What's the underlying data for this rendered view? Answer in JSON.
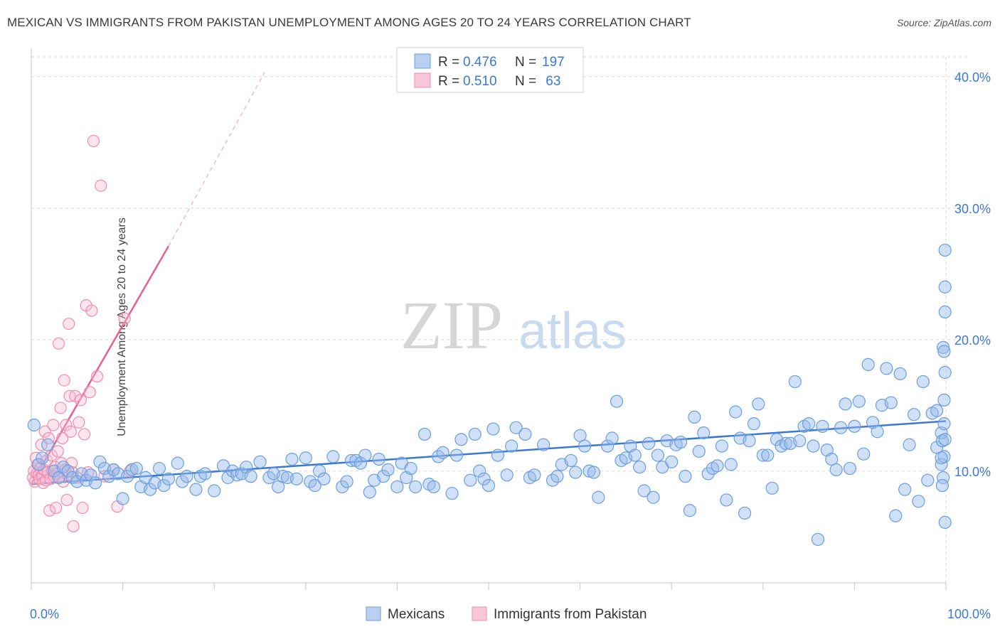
{
  "title": "MEXICAN VS IMMIGRANTS FROM PAKISTAN UNEMPLOYMENT AMONG AGES 20 TO 24 YEARS CORRELATION CHART",
  "source": "Source: ZipAtlas.com",
  "watermark": {
    "zip": "ZIP",
    "atlas": "atlas"
  },
  "colors": {
    "blue": "#6a9fe0",
    "blue_line": "#3a78d4",
    "pink": "#f08cae",
    "pink_line": "#e8608c",
    "tick_text": "#3a78d4",
    "grid": "#d8d8d8"
  },
  "legend_top": [
    {
      "r_label": "R = ",
      "r_value": "0.476",
      "n_label": "N = ",
      "n_value": "197"
    },
    {
      "r_label": "R = ",
      "r_value": "0.510",
      "n_label": "N = ",
      "n_value": " 63"
    }
  ],
  "chart_data": {
    "type": "scatter",
    "title": "MEXICAN VS IMMIGRANTS FROM PAKISTAN UNEMPLOYMENT AMONG AGES 20 TO 24 YEARS CORRELATION CHART",
    "xlabel": "",
    "ylabel": "Unemployment Among Ages 20 to 24 years",
    "xlim": [
      0,
      100
    ],
    "ylim": [
      1.5,
      41.5
    ],
    "x_tick_labels": [
      "0.0%",
      "100.0%"
    ],
    "y_ticks": [
      10,
      20,
      30,
      40
    ],
    "y_tick_labels": [
      "10.0%",
      "20.0%",
      "30.0%",
      "40.0%"
    ],
    "grid": true,
    "legend_position": "bottom-center",
    "series": [
      {
        "name": "Mexicans",
        "r": 0.476,
        "n": 197,
        "trend": {
          "x0": 0,
          "y0": 9.0,
          "x1": 100,
          "y1": 13.8
        },
        "points": [
          [
            0.3,
            13.5
          ],
          [
            0.8,
            10.5
          ],
          [
            1.2,
            11
          ],
          [
            1.8,
            12
          ],
          [
            2.5,
            10
          ],
          [
            3,
            9.5
          ],
          [
            3.5,
            10.3
          ],
          [
            4,
            10
          ],
          [
            4.5,
            9.5
          ],
          [
            5,
            9.2
          ],
          [
            5.5,
            9.8
          ],
          [
            6,
            9.3
          ],
          [
            6.5,
            9.7
          ],
          [
            7,
            9.1
          ],
          [
            7.5,
            10.7
          ],
          [
            8,
            10.2
          ],
          [
            8.5,
            9.6
          ],
          [
            9,
            10.1
          ],
          [
            9.5,
            9.8
          ],
          [
            10,
            7.9
          ],
          [
            10.5,
            9.6
          ],
          [
            11,
            10.1
          ],
          [
            11.5,
            10.2
          ],
          [
            12,
            8.8
          ],
          [
            12.5,
            9.5
          ],
          [
            13,
            8.6
          ],
          [
            13.5,
            9.1
          ],
          [
            14,
            10.2
          ],
          [
            14.5,
            8.9
          ],
          [
            15,
            9.4
          ],
          [
            16,
            10.6
          ],
          [
            16.5,
            9.2
          ],
          [
            17,
            9.6
          ],
          [
            18,
            8.6
          ],
          [
            18.5,
            9.6
          ],
          [
            19,
            9.8
          ],
          [
            20,
            8.5
          ],
          [
            21,
            10.4
          ],
          [
            21.5,
            9.5
          ],
          [
            22,
            10
          ],
          [
            22.5,
            9.7
          ],
          [
            23,
            9.8
          ],
          [
            23.5,
            10.3
          ],
          [
            24,
            9.6
          ],
          [
            25,
            10.7
          ],
          [
            26,
            9.5
          ],
          [
            26.5,
            9.8
          ],
          [
            27,
            8.8
          ],
          [
            27.5,
            9.6
          ],
          [
            28,
            9.5
          ],
          [
            28.5,
            10.9
          ],
          [
            29,
            9.4
          ],
          [
            30,
            11
          ],
          [
            30.5,
            9.2
          ],
          [
            31,
            8.9
          ],
          [
            31.5,
            10
          ],
          [
            32,
            9.4
          ],
          [
            33,
            11.1
          ],
          [
            34,
            8.8
          ],
          [
            34.5,
            9.2
          ],
          [
            35,
            10.8
          ],
          [
            35.5,
            10.8
          ],
          [
            36,
            10.6
          ],
          [
            36.5,
            11.2
          ],
          [
            37,
            8.4
          ],
          [
            37.5,
            9.3
          ],
          [
            38,
            10.9
          ],
          [
            38.5,
            9.6
          ],
          [
            39,
            10.1
          ],
          [
            40,
            8.8
          ],
          [
            40.5,
            10.6
          ],
          [
            41,
            9.5
          ],
          [
            41.5,
            10.2
          ],
          [
            42,
            8.8
          ],
          [
            43,
            12.8
          ],
          [
            43.5,
            9.0
          ],
          [
            44,
            8.8
          ],
          [
            44.5,
            11.1
          ],
          [
            45,
            11.4
          ],
          [
            46,
            8.3
          ],
          [
            46.5,
            11.2
          ],
          [
            47,
            12.4
          ],
          [
            48,
            9.3
          ],
          [
            48.5,
            12.8
          ],
          [
            49,
            10
          ],
          [
            49.5,
            9.4
          ],
          [
            50,
            8.9
          ],
          [
            50.5,
            13.2
          ],
          [
            51,
            11.2
          ],
          [
            52,
            9.7
          ],
          [
            52.5,
            11.9
          ],
          [
            53,
            13.3
          ],
          [
            54,
            12.8
          ],
          [
            54.5,
            9.5
          ],
          [
            55,
            9.7
          ],
          [
            56,
            12
          ],
          [
            57,
            9.3
          ],
          [
            57.5,
            9.6
          ],
          [
            58,
            10.5
          ],
          [
            59,
            10.8
          ],
          [
            59.5,
            9.9
          ],
          [
            60,
            12.7
          ],
          [
            60.5,
            11.9
          ],
          [
            61,
            10
          ],
          [
            61.5,
            9.9
          ],
          [
            62,
            8
          ],
          [
            63,
            11.9
          ],
          [
            63.5,
            12.5
          ],
          [
            64,
            15.3
          ],
          [
            64.5,
            10.8
          ],
          [
            65,
            11
          ],
          [
            65.5,
            11.9
          ],
          [
            66,
            11.2
          ],
          [
            66.5,
            10.3
          ],
          [
            67,
            8.5
          ],
          [
            67.5,
            12.1
          ],
          [
            68,
            8
          ],
          [
            68.5,
            11.2
          ],
          [
            69,
            10.3
          ],
          [
            69.5,
            12.3
          ],
          [
            70,
            10.7
          ],
          [
            70.5,
            12
          ],
          [
            71,
            12.2
          ],
          [
            71.5,
            9.6
          ],
          [
            72,
            7
          ],
          [
            72.5,
            14.1
          ],
          [
            73,
            11.5
          ],
          [
            73.5,
            12.9
          ],
          [
            74,
            9.8
          ],
          [
            74.5,
            10.2
          ],
          [
            75,
            10.4
          ],
          [
            75.5,
            11.9
          ],
          [
            76,
            7.8
          ],
          [
            76.5,
            10.5
          ],
          [
            77,
            14.5
          ],
          [
            77.5,
            12.5
          ],
          [
            78,
            6.8
          ],
          [
            78.5,
            12.3
          ],
          [
            79,
            13.6
          ],
          [
            79.5,
            15.1
          ],
          [
            80,
            11.2
          ],
          [
            80.5,
            11.2
          ],
          [
            81,
            8.7
          ],
          [
            81.5,
            12.4
          ],
          [
            82,
            11.9
          ],
          [
            82.5,
            12.1
          ],
          [
            83,
            12.1
          ],
          [
            83.5,
            16.8
          ],
          [
            84,
            12.3
          ],
          [
            84.5,
            13.4
          ],
          [
            85,
            13.6
          ],
          [
            85.5,
            11.9
          ],
          [
            86,
            4.8
          ],
          [
            86.5,
            13.4
          ],
          [
            87,
            11.6
          ],
          [
            87.5,
            10.9
          ],
          [
            88,
            10.1
          ],
          [
            88.5,
            13.3
          ],
          [
            89,
            15.1
          ],
          [
            89.5,
            10.2
          ],
          [
            90,
            13.4
          ],
          [
            90.5,
            15.3
          ],
          [
            91,
            11.3
          ],
          [
            91.5,
            18.1
          ],
          [
            92,
            13.7
          ],
          [
            92.5,
            13
          ],
          [
            93,
            15
          ],
          [
            93.5,
            17.8
          ],
          [
            94,
            15.2
          ],
          [
            94.5,
            6.6
          ],
          [
            95,
            17.4
          ],
          [
            95.5,
            8.6
          ],
          [
            96,
            12
          ],
          [
            96.5,
            14.3
          ],
          [
            97,
            7.7
          ],
          [
            97.5,
            16.8
          ],
          [
            98,
            9.3
          ],
          [
            98.5,
            14.4
          ],
          [
            99,
            14.6
          ],
          [
            99.5,
            10.5
          ],
          [
            99,
            11.8
          ],
          [
            99.5,
            12.9
          ],
          [
            99.7,
            19.4
          ],
          [
            99.8,
            19.1
          ],
          [
            99.9,
            22.1
          ],
          [
            99.9,
            24
          ],
          [
            99.9,
            26.8
          ],
          [
            99.9,
            17.5
          ],
          [
            99.8,
            15.4
          ],
          [
            99.6,
            12.3
          ],
          [
            99.8,
            11.1
          ],
          [
            99.9,
            6.1
          ],
          [
            99.7,
            9.5
          ],
          [
            99.5,
            11
          ],
          [
            99.9,
            12.4
          ],
          [
            99.8,
            13.6
          ],
          [
            99.6,
            8.9
          ]
        ]
      },
      {
        "name": "Immigrants from Pakistan",
        "r": 0.51,
        "n": 63,
        "trend": {
          "x0": 0,
          "y0": 9.0,
          "x1": 15,
          "y1": 27.1
        },
        "trend_extension": {
          "x1": 25.5,
          "y1": 40.3
        },
        "points": [
          [
            0.2,
            9.5
          ],
          [
            0.3,
            10
          ],
          [
            0.4,
            9.2
          ],
          [
            0.5,
            11
          ],
          [
            0.6,
            9.8
          ],
          [
            0.7,
            10.5
          ],
          [
            0.8,
            9.7
          ],
          [
            0.9,
            9.4
          ],
          [
            1,
            10.2
          ],
          [
            1.1,
            12
          ],
          [
            1.2,
            9.6
          ],
          [
            1.3,
            9.1
          ],
          [
            1.4,
            10.1
          ],
          [
            1.5,
            13
          ],
          [
            1.6,
            9.3
          ],
          [
            1.7,
            10.8
          ],
          [
            1.8,
            9.9
          ],
          [
            1.9,
            12.5
          ],
          [
            2,
            7
          ],
          [
            2.1,
            9.4
          ],
          [
            2.2,
            11.2
          ],
          [
            2.3,
            10
          ],
          [
            2.4,
            13.5
          ],
          [
            2.5,
            9.6
          ],
          [
            2.6,
            10.3
          ],
          [
            2.7,
            7.2
          ],
          [
            2.8,
            9.8
          ],
          [
            2.9,
            11.5
          ],
          [
            3,
            19.7
          ],
          [
            3.1,
            9.5
          ],
          [
            3.2,
            14.8
          ],
          [
            3.3,
            10.6
          ],
          [
            3.4,
            12.5
          ],
          [
            3.5,
            9.2
          ],
          [
            3.6,
            16.9
          ],
          [
            3.7,
            10.1
          ],
          [
            3.8,
            13.5
          ],
          [
            3.9,
            7.8
          ],
          [
            4,
            9.7
          ],
          [
            4.1,
            21.2
          ],
          [
            4.2,
            15.7
          ],
          [
            4.3,
            13
          ],
          [
            4.4,
            10.6
          ],
          [
            4.5,
            9.9
          ],
          [
            4.6,
            5.8
          ],
          [
            4.8,
            15.7
          ],
          [
            5,
            9.5
          ],
          [
            5.2,
            13.7
          ],
          [
            5.4,
            15.4
          ],
          [
            5.6,
            7.2
          ],
          [
            5.8,
            12.8
          ],
          [
            6,
            22.6
          ],
          [
            6.2,
            9.9
          ],
          [
            6.4,
            16
          ],
          [
            6.6,
            22.2
          ],
          [
            6.8,
            35.1
          ],
          [
            7.2,
            17.2
          ],
          [
            7.6,
            31.7
          ],
          [
            8,
            9.6
          ],
          [
            9,
            10.1
          ],
          [
            9.4,
            7.3
          ],
          [
            10.2,
            21.6
          ],
          [
            10.8,
            10
          ]
        ]
      }
    ]
  },
  "legend_bottom": [
    {
      "label": "Mexicans"
    },
    {
      "label": "Immigrants from Pakistan"
    }
  ]
}
